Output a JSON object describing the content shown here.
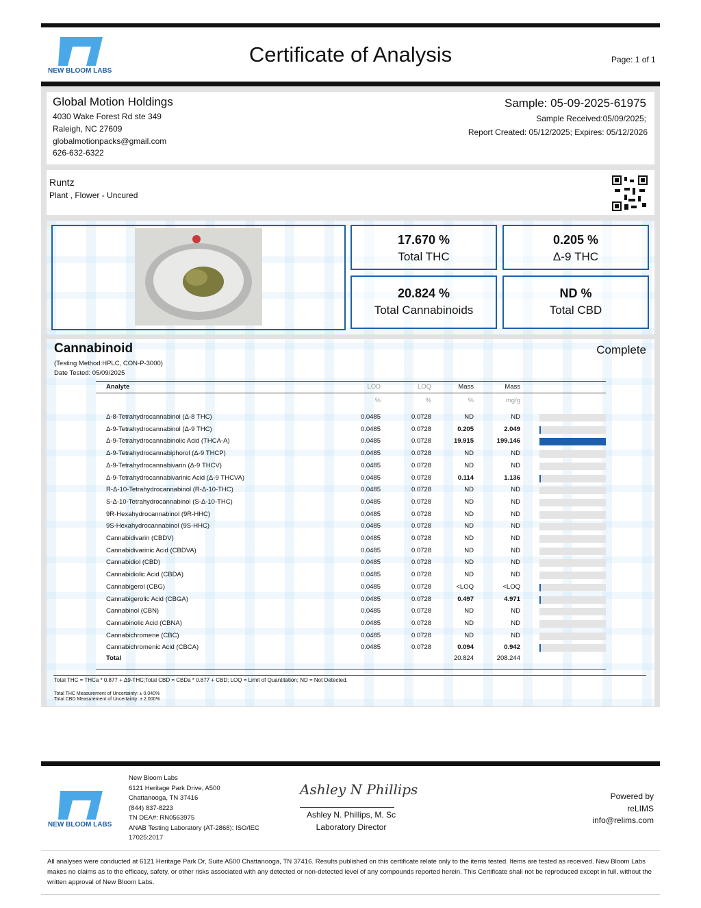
{
  "header": {
    "logo_text": "NEW BLOOM LABS",
    "title": "Certificate of Analysis",
    "page": "Page: 1 of 1"
  },
  "client": {
    "name": "Global Motion Holdings",
    "address1": "4030 Wake Forest Rd ste 349",
    "address2": "Raleigh, NC 27609",
    "email": "globalmotionpacks@gmail.com",
    "phone": "626-632-6322"
  },
  "sample": {
    "id": "Sample: 05-09-2025-61975",
    "received": "Sample Received:05/09/2025;",
    "report": "Report Created: 05/12/2025; Expires: 05/12/2026"
  },
  "product": {
    "name": "Runtz",
    "type": "Plant , Flower - Uncured"
  },
  "summary": [
    {
      "value": "17.670 %",
      "label": "Total THC"
    },
    {
      "value": "0.205 %",
      "label": "Δ-9 THC"
    },
    {
      "value": "20.824 %",
      "label": "Total Cannabinoids"
    },
    {
      "value": "ND %",
      "label": "Total CBD"
    }
  ],
  "cannabinoid": {
    "title": "Cannabinoid",
    "status": "Complete",
    "method": "(Testing Method:HPLC, CON-P-3000)",
    "date": "Date Tested: 05/09/2025"
  },
  "table": {
    "headers": [
      "Analyte",
      "LOD",
      "LOQ",
      "Mass",
      "Mass"
    ],
    "units": [
      "%",
      "%",
      "%",
      "mg/g"
    ],
    "rows": [
      [
        "Δ-8-Tetrahydrocannabinol (Δ-8 THC)",
        "0.0485",
        "0.0728",
        "ND",
        "ND"
      ],
      [
        "Δ-9-Tetrahydrocannabinol (Δ-9 THC)",
        "0.0485",
        "0.0728",
        "0.205",
        "2.049"
      ],
      [
        "Δ-9-Tetrahydrocannabinolic Acid (THCA-A)",
        "0.0485",
        "0.0728",
        "19.915",
        "199.146"
      ],
      [
        "Δ-9-Tetrahydrocannabiphorol (Δ-9 THCP)",
        "0.0485",
        "0.0728",
        "ND",
        "ND"
      ],
      [
        "Δ-9-Tetrahydrocannabivarin (Δ-9 THCV)",
        "0.0485",
        "0.0728",
        "ND",
        "ND"
      ],
      [
        "Δ-9-Tetrahydrocannabivarinic Acid (Δ-9 THCVA)",
        "0.0485",
        "0.0728",
        "0.114",
        "1.136"
      ],
      [
        "R-Δ-10-Tetrahydrocannabinol (R-Δ-10-THC)",
        "0.0485",
        "0.0728",
        "ND",
        "ND"
      ],
      [
        "S-Δ-10-Tetrahydrocannabinol (S-Δ-10-THC)",
        "0.0485",
        "0.0728",
        "ND",
        "ND"
      ],
      [
        "9R-Hexahydrocannabinol (9R-HHC)",
        "0.0485",
        "0.0728",
        "ND",
        "ND"
      ],
      [
        "9S-Hexahydrocannabinol (9S-HHC)",
        "0.0485",
        "0.0728",
        "ND",
        "ND"
      ],
      [
        "Cannabidivarin (CBDV)",
        "0.0485",
        "0.0728",
        "ND",
        "ND"
      ],
      [
        "Cannabidivarinic Acid (CBDVA)",
        "0.0485",
        "0.0728",
        "ND",
        "ND"
      ],
      [
        "Cannabidiol (CBD)",
        "0.0485",
        "0.0728",
        "ND",
        "ND"
      ],
      [
        "Cannabidiolic Acid (CBDA)",
        "0.0485",
        "0.0728",
        "ND",
        "ND"
      ],
      [
        "Cannabigerol (CBG)",
        "0.0485",
        "0.0728",
        "<LOQ",
        "<LOQ"
      ],
      [
        "Cannabigerolic Acid (CBGA)",
        "0.0485",
        "0.0728",
        "0.497",
        "4.971"
      ],
      [
        "Cannabinol (CBN)",
        "0.0485",
        "0.0728",
        "ND",
        "ND"
      ],
      [
        "Cannabinolic Acid (CBNA)",
        "0.0485",
        "0.0728",
        "ND",
        "ND"
      ],
      [
        "Cannabichromene (CBC)",
        "0.0485",
        "0.0728",
        "ND",
        "ND"
      ],
      [
        "Cannabichromenic Acid (CBCA)",
        "0.0485",
        "0.0728",
        "0.094",
        "0.942"
      ]
    ],
    "total": {
      "label": "Total",
      "mass_pct": "20.824",
      "mass_mg": "208.244"
    }
  },
  "notes": [
    "Total THC = THCa * 0.877 + Δ9-THC;Total CBD = CBDa * 0.877 + CBD; LOQ = Limit of Quantitation; ND = Not Detected.",
    "Total THC Measurement of Uncertainty: ± 0.040%",
    "Total CBD Measurement of Uncertainty: ± 2.000%"
  ],
  "footer": {
    "logo_text": "NEW BLOOM LABS",
    "lab": [
      "New Bloom Labs",
      "6121 Heritage Park Drive, A500",
      "Chattanooga, TN 37416",
      "(844) 837-8223",
      "TN DEA#: RN0563975",
      "ANAB Testing Laboratory (AT-2868): ISO/IEC",
      "17025:2017"
    ],
    "signature": "Ashley N Phillips",
    "signer": "Ashley N. Phillips, M. Sc",
    "role": "Laboratory Director",
    "powered": [
      "Powered by",
      "reLIMS",
      "info@relims.com"
    ],
    "disclaimer": "All analyses were conducted at 6121 Heritage Park Dr, Suite A500 Chattanooga, TN 37416. Results published on this certificate relate only to the items tested. Items are tested as received. New Bloom Labs makes no claims as to the efficacy, safety, or other risks associated with any detected or non-detected level of any compounds reported herein. This Certificate shall not be reproduced except in full, without the written approval of New Bloom Labs."
  }
}
